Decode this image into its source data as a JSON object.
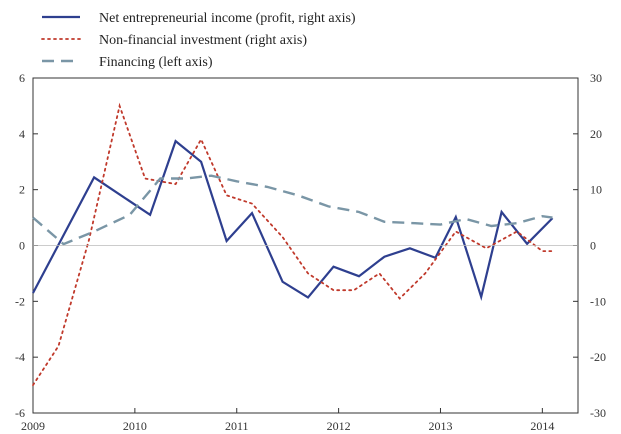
{
  "chart_data": {
    "type": "line",
    "title": "",
    "legend_placement": "top-left",
    "grid": false,
    "x_range": [
      2009,
      2014.35
    ],
    "x_ticks": [
      2009,
      2010,
      2011,
      2012,
      2013,
      2014
    ],
    "x_tick_labels": [
      "2009",
      "2010",
      "2011",
      "2012",
      "2013",
      "2014"
    ],
    "left_axis": {
      "ylim": [
        -6,
        6
      ],
      "ticks": [
        6,
        4,
        2,
        0,
        -2,
        -4,
        -6
      ],
      "tick_labels": [
        "6",
        "4",
        "2",
        "0",
        "-2",
        "-4",
        "-6"
      ]
    },
    "right_axis": {
      "ylim": [
        -30,
        30
      ],
      "ticks": [
        30,
        20,
        10,
        0,
        -10,
        -20,
        -30
      ],
      "tick_labels": [
        "30",
        "20",
        "10",
        "0",
        "-10",
        "-20",
        "-30"
      ]
    },
    "series": [
      {
        "name": "Net entrepreneurial income (profit, right axis)",
        "axis": "right",
        "style": "solid",
        "color": "#2e3f8f",
        "x": [
          2009.0,
          2009.6,
          2010.15,
          2010.4,
          2010.65,
          2010.9,
          2011.15,
          2011.45,
          2011.7,
          2011.95,
          2012.2,
          2012.45,
          2012.7,
          2012.95,
          2013.15,
          2013.4,
          2013.6,
          2013.85,
          2014.1
        ],
        "y": [
          -8.5,
          12.2,
          5.5,
          18.7,
          15,
          0.8,
          5.8,
          -6.5,
          -9.3,
          -3.8,
          -5.5,
          -2,
          -0.5,
          -2.2,
          5.1,
          -9.2,
          6,
          0.3,
          4.9
        ]
      },
      {
        "name": "Non-financial investment (right axis)",
        "axis": "right",
        "style": "dotted",
        "color": "#c0392b",
        "x": [
          2009.0,
          2009.25,
          2009.55,
          2009.85,
          2010.1,
          2010.4,
          2010.65,
          2010.9,
          2011.15,
          2011.45,
          2011.7,
          2011.95,
          2012.15,
          2012.4,
          2012.6,
          2012.85,
          2013.15,
          2013.45,
          2013.75,
          2014.0,
          2014.1
        ],
        "y": [
          -25,
          -18,
          1,
          25,
          12,
          11,
          19,
          9,
          7.5,
          1.5,
          -5,
          -8,
          -8,
          -5,
          -9.5,
          -5,
          2.5,
          -0.5,
          2.5,
          -1,
          -1
        ]
      },
      {
        "name": "Financing (left axis)",
        "axis": "left",
        "style": "dashed",
        "color": "#7a96a6",
        "x": [
          2009.0,
          2009.3,
          2009.6,
          2009.95,
          2010.25,
          2010.5,
          2010.75,
          2011.0,
          2011.3,
          2011.6,
          2011.9,
          2012.2,
          2012.45,
          2012.75,
          2013.0,
          2013.25,
          2013.5,
          2013.75,
          2014.0,
          2014.1
        ],
        "y": [
          1,
          0.05,
          0.5,
          1.1,
          2.4,
          2.4,
          2.5,
          2.3,
          2.1,
          1.8,
          1.4,
          1.2,
          0.85,
          0.8,
          0.75,
          0.95,
          0.7,
          0.8,
          1.05,
          1.0
        ]
      }
    ]
  }
}
